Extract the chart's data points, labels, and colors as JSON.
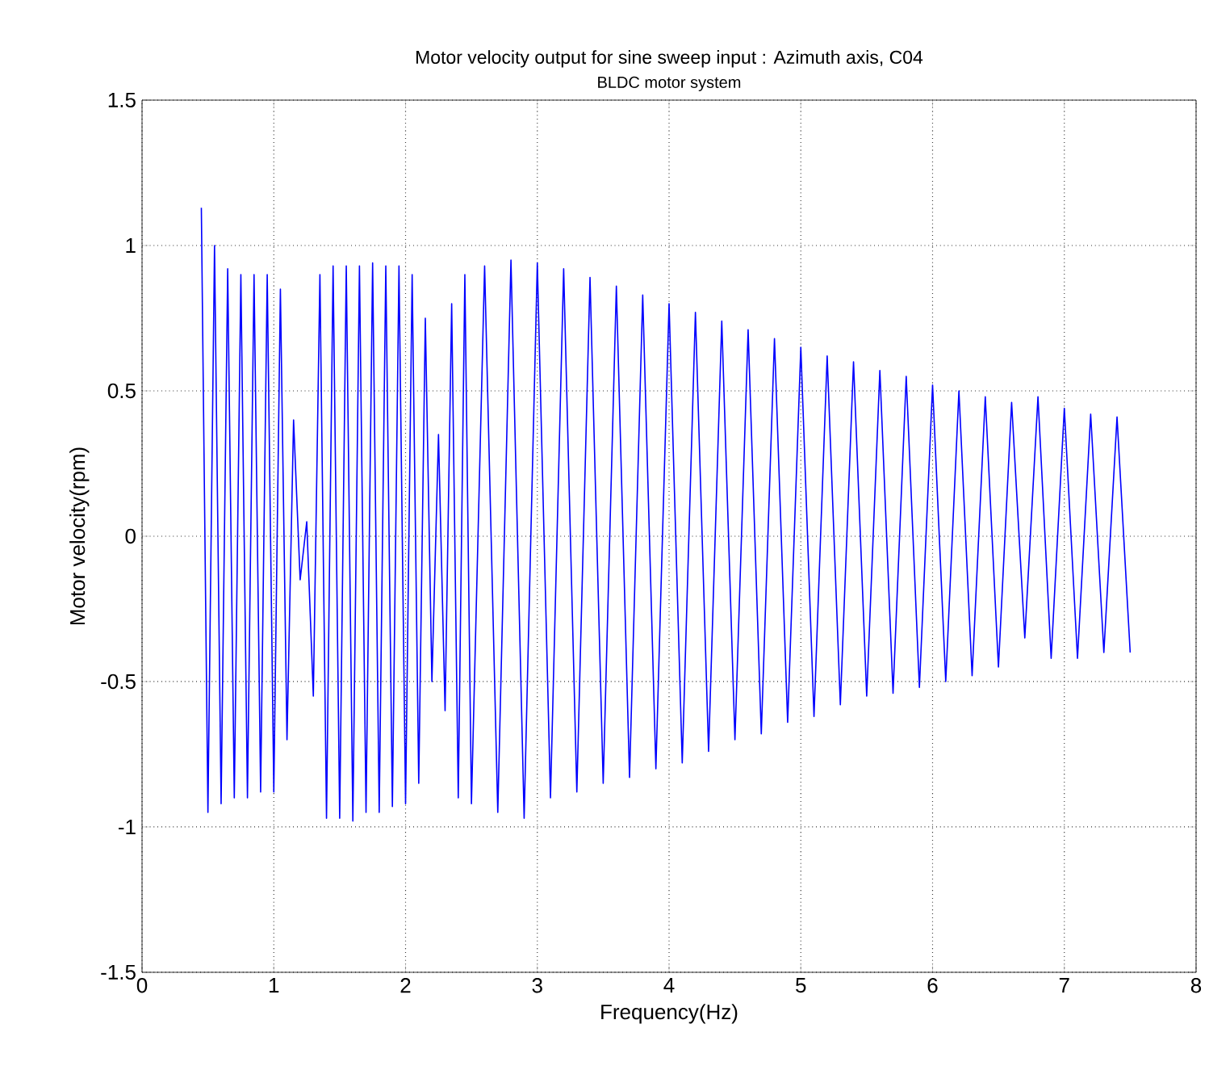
{
  "chart_data": {
    "type": "line",
    "title": "Motor velocity output for sine sweep input : Azimuth axis, C04",
    "subtitle": "BLDC motor system",
    "xlabel": "Frequency(Hz)",
    "ylabel": "Motor velocity(rpm)",
    "xlim": [
      0,
      8
    ],
    "ylim": [
      -1.5,
      1.5
    ],
    "xticks": [
      0,
      1,
      2,
      3,
      4,
      5,
      6,
      7,
      8
    ],
    "yticks": [
      -1.5,
      -1,
      -0.5,
      0,
      0.5,
      1,
      1.5
    ],
    "grid": true,
    "marker": "none",
    "line_style": "solid",
    "series": [
      {
        "color": "#0000ff",
        "x": [
          0.45,
          0.5,
          0.55,
          0.6,
          0.65,
          0.7,
          0.75,
          0.8,
          0.85,
          0.9,
          0.95,
          1.0,
          1.05,
          1.1,
          1.15,
          1.2,
          1.25,
          1.3,
          1.35,
          1.4,
          1.45,
          1.5,
          1.55,
          1.6,
          1.65,
          1.7,
          1.75,
          1.8,
          1.85,
          1.9,
          1.95,
          2.0,
          2.05,
          2.1,
          2.15,
          2.2,
          2.25,
          2.3,
          2.35,
          2.4,
          2.45,
          2.5,
          2.6,
          2.7,
          2.8,
          2.9,
          3.0,
          3.1,
          3.2,
          3.3,
          3.4,
          3.5,
          3.6,
          3.7,
          3.8,
          3.9,
          4.0,
          4.1,
          4.2,
          4.3,
          4.4,
          4.5,
          4.6,
          4.7,
          4.8,
          4.9,
          5.0,
          5.1,
          5.2,
          5.3,
          5.4,
          5.5,
          5.6,
          5.7,
          5.8,
          5.9,
          6.0,
          6.1,
          6.2,
          6.3,
          6.4,
          6.5,
          6.6,
          6.7,
          6.8,
          6.9,
          7.0,
          7.1,
          7.2,
          7.3,
          7.4,
          7.5
        ],
        "values": [
          1.13,
          -0.95,
          1.0,
          -0.92,
          0.92,
          -0.9,
          0.9,
          -0.9,
          0.9,
          -0.88,
          0.9,
          -0.88,
          0.85,
          -0.7,
          0.4,
          -0.15,
          0.05,
          -0.55,
          0.9,
          -0.97,
          0.93,
          -0.97,
          0.93,
          -0.98,
          0.93,
          -0.95,
          0.94,
          -0.95,
          0.93,
          -0.93,
          0.93,
          -0.92,
          0.9,
          -0.85,
          0.75,
          -0.5,
          0.35,
          -0.6,
          0.8,
          -0.9,
          0.9,
          -0.92,
          0.93,
          -0.95,
          0.95,
          -0.97,
          0.94,
          -0.9,
          0.92,
          -0.88,
          0.89,
          -0.85,
          0.86,
          -0.83,
          0.83,
          -0.8,
          0.8,
          -0.78,
          0.77,
          -0.74,
          0.74,
          -0.7,
          0.71,
          -0.68,
          0.68,
          -0.64,
          0.65,
          -0.62,
          0.62,
          -0.58,
          0.6,
          -0.55,
          0.57,
          -0.54,
          0.55,
          -0.52,
          0.52,
          -0.5,
          0.5,
          -0.48,
          0.48,
          -0.45,
          0.46,
          -0.35,
          0.48,
          -0.42,
          0.44,
          -0.42,
          0.42,
          -0.4,
          0.41,
          -0.4
        ]
      }
    ]
  }
}
